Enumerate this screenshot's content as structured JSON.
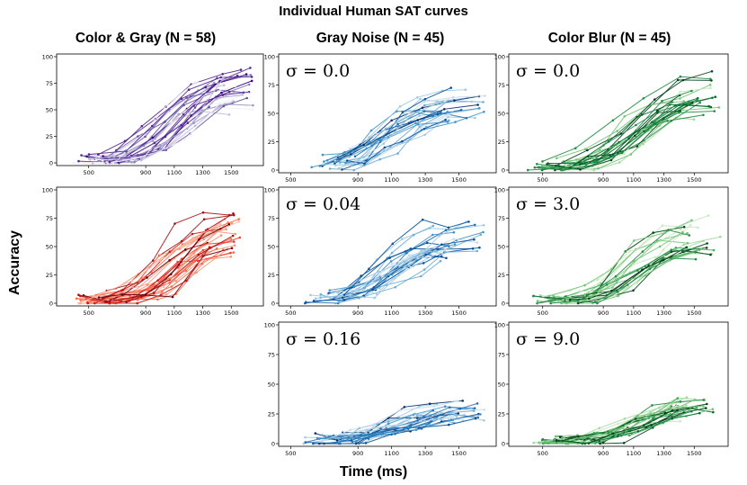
{
  "figure_title": "Individual Human SAT curves",
  "columns": [
    {
      "title": "Color & Gray (N = 58)"
    },
    {
      "title": "Gray Noise (N = 45)"
    },
    {
      "title": "Color Blur (N = 45)"
    }
  ],
  "xlabel": "Time (ms)",
  "ylabel": "Accuracy",
  "chart_data": [
    {
      "type": "line",
      "id": "color-gray-top",
      "palette": "purple",
      "n_curves": 30,
      "seed": 11,
      "x_ticks": [
        500,
        900,
        1100,
        1300,
        1500
      ],
      "y_ticks": [
        0,
        25,
        50,
        75,
        100
      ],
      "xlim": [
        300,
        1700
      ],
      "ylim": [
        0,
        100
      ],
      "max_acc": 85,
      "label": ""
    },
    {
      "type": "line",
      "id": "color-gray-bottom",
      "palette": "red",
      "n_curves": 30,
      "seed": 23,
      "x_ticks": [
        500,
        900,
        1100,
        1300,
        1500
      ],
      "y_ticks": [
        0,
        25,
        50,
        75,
        100
      ],
      "xlim": [
        300,
        1700
      ],
      "ylim": [
        0,
        100
      ],
      "max_acc": 82,
      "label": ""
    },
    {
      "type": "line",
      "id": "gray-noise-0",
      "palette": "blue",
      "n_curves": 24,
      "seed": 37,
      "x_ticks": [
        500,
        900,
        1100,
        1300,
        1500
      ],
      "y_ticks": [
        0,
        25,
        50,
        75,
        100
      ],
      "xlim": [
        450,
        1700
      ],
      "ylim": [
        0,
        100
      ],
      "max_acc": 80,
      "label": "σ = 0.0"
    },
    {
      "type": "line",
      "id": "gray-noise-004",
      "palette": "blue",
      "n_curves": 24,
      "seed": 41,
      "x_ticks": [
        500,
        900,
        1100,
        1300,
        1500
      ],
      "y_ticks": [
        0,
        25,
        50,
        75,
        100
      ],
      "xlim": [
        450,
        1700
      ],
      "ylim": [
        0,
        100
      ],
      "max_acc": 72,
      "label": "σ = 0.04"
    },
    {
      "type": "line",
      "id": "gray-noise-016",
      "palette": "blue",
      "n_curves": 24,
      "seed": 53,
      "x_ticks": [
        500,
        900,
        1100,
        1300,
        1500
      ],
      "y_ticks": [
        0,
        25,
        50,
        75,
        100
      ],
      "xlim": [
        450,
        1700
      ],
      "ylim": [
        0,
        100
      ],
      "max_acc": 33,
      "label": "σ = 0.16"
    },
    {
      "type": "line",
      "id": "color-blur-0",
      "palette": "green",
      "n_curves": 24,
      "seed": 61,
      "x_ticks": [
        500,
        900,
        1100,
        1300,
        1500
      ],
      "y_ticks": [
        0,
        25,
        50,
        75,
        100
      ],
      "xlim": [
        300,
        1700
      ],
      "ylim": [
        0,
        100
      ],
      "max_acc": 85,
      "label": "σ = 0.0"
    },
    {
      "type": "line",
      "id": "color-blur-3",
      "palette": "green",
      "n_curves": 24,
      "seed": 73,
      "x_ticks": [
        500,
        900,
        1100,
        1300,
        1500
      ],
      "y_ticks": [
        0,
        25,
        50,
        75,
        100
      ],
      "xlim": [
        300,
        1700
      ],
      "ylim": [
        0,
        100
      ],
      "max_acc": 75,
      "label": "σ = 3.0"
    },
    {
      "type": "line",
      "id": "color-blur-9",
      "palette": "green",
      "n_curves": 24,
      "seed": 89,
      "x_ticks": [
        500,
        900,
        1100,
        1300,
        1500
      ],
      "y_ticks": [
        0,
        25,
        50,
        75,
        100
      ],
      "xlim": [
        300,
        1700
      ],
      "ylim": [
        0,
        100
      ],
      "max_acc": 40,
      "label": "σ = 9.0"
    }
  ],
  "palettes": {
    "purple": [
      "#efedf5",
      "#bcbddc",
      "#9e9ac8",
      "#807dba",
      "#6a51a3",
      "#54278f",
      "#3f007d"
    ],
    "red": [
      "#fcbba1",
      "#fc9272",
      "#fb6a4a",
      "#ef3b2c",
      "#cb181d",
      "#a50f15",
      "#67000d"
    ],
    "blue": [
      "#c6dbef",
      "#9ecae1",
      "#6baed6",
      "#4292c6",
      "#2171b5",
      "#08519c",
      "#08306b"
    ],
    "green": [
      "#c7e9c0",
      "#a1d99b",
      "#74c476",
      "#41ab5d",
      "#238b45",
      "#006d2c",
      "#00441b"
    ]
  }
}
